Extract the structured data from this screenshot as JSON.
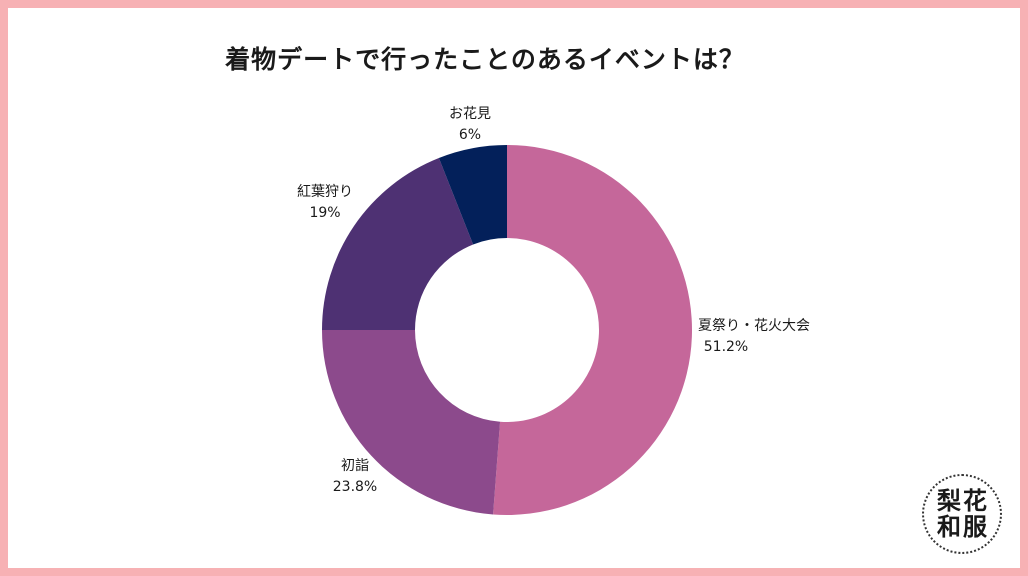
{
  "chart_data": {
    "type": "pie",
    "title": "着物デートで行ったことのあるイベントは？",
    "hole": "donut",
    "slices": [
      {
        "name": "夏祭り・花火大会",
        "value": 51.2,
        "label": "51.2%",
        "color": "#c5679a"
      },
      {
        "name": "初詣",
        "value": 23.8,
        "label": "23.8%",
        "color": "#8c4a8c"
      },
      {
        "name": "紅葉狩り",
        "value": 19,
        "label": "19%",
        "color": "#4e3173"
      },
      {
        "name": "お花見",
        "value": 6,
        "label": "6%",
        "color": "#03205a"
      }
    ]
  },
  "logo": {
    "chars": [
      "梨",
      "花",
      "和",
      "服"
    ]
  },
  "colors": {
    "frame": "#f7b1b4",
    "background": "#ffffff"
  }
}
